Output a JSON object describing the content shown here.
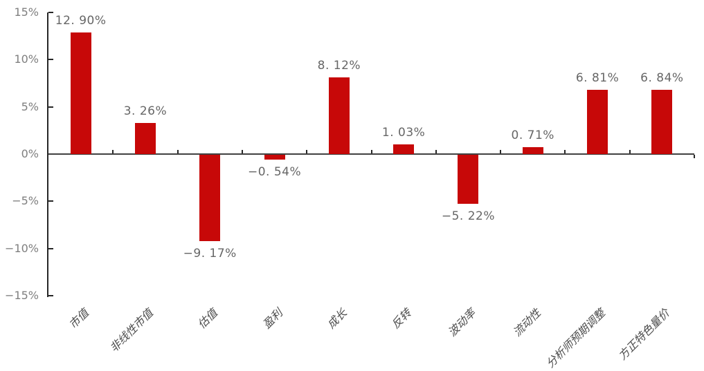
{
  "chart_data": {
    "type": "bar",
    "categories": [
      "市值",
      "非线性市值",
      "估值",
      "盈利",
      "成长",
      "反转",
      "波动率",
      "流动性",
      "分析师预期调整",
      "方正特色量价"
    ],
    "values": [
      12.9,
      3.26,
      -9.17,
      -0.54,
      8.12,
      1.03,
      -5.22,
      0.71,
      6.81,
      6.84
    ],
    "value_labels": [
      "12. 90%",
      "3. 26%",
      "−9. 17%",
      "−0. 54%",
      "8. 12%",
      "1. 03%",
      "−5. 22%",
      "0. 71%",
      "6. 81%",
      "6. 84%"
    ],
    "title": "",
    "xlabel": "",
    "ylabel": "",
    "ylim": [
      -15,
      15
    ],
    "y_tick_step": 5,
    "y_tick_labels": [
      "15%",
      "10%",
      "5%",
      "0%",
      "−5%",
      "−10%",
      "−15%"
    ],
    "grid": false,
    "legend": null,
    "bar_color": "#C70808",
    "axis_color": "#262626",
    "zero_line_color": "#404040",
    "value_label_color": "#666666",
    "tick_label_color": "#7f7f7f",
    "category_label_color": "#4d4d4d"
  }
}
